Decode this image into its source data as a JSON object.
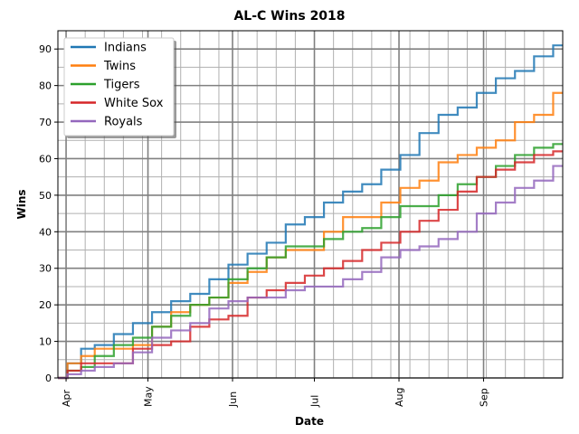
{
  "chart_data": {
    "type": "line",
    "title": "AL-C Wins 2018",
    "xlabel": "Date",
    "ylabel": "Wins",
    "x_unit": "days since Mar 29 2018",
    "xlim": [
      0,
      185
    ],
    "ylim": [
      0,
      95
    ],
    "yticks": [
      0,
      10,
      20,
      30,
      40,
      50,
      60,
      70,
      80,
      90
    ],
    "xticks": [
      {
        "label": "Apr",
        "day": 3
      },
      {
        "label": "May",
        "day": 33
      },
      {
        "label": "Jun",
        "day": 64
      },
      {
        "label": "Jul",
        "day": 94
      },
      {
        "label": "Aug",
        "day": 125
      },
      {
        "label": "Sep",
        "day": 156
      }
    ],
    "grid": true,
    "legend_position": "top-left",
    "x": [
      0,
      7,
      10,
      17,
      24,
      31,
      38,
      45,
      52,
      59,
      66,
      73,
      80,
      87,
      94,
      101,
      108,
      115,
      122,
      129,
      136,
      143,
      150,
      157,
      164,
      171,
      178,
      185
    ],
    "series": [
      {
        "name": "Indians",
        "color": "#1f77b4",
        "values": [
          0,
          4,
          8,
          9,
          12,
          15,
          18,
          21,
          23,
          27,
          31,
          34,
          37,
          42,
          44,
          48,
          51,
          53,
          57,
          61,
          67,
          72,
          74,
          78,
          82,
          84,
          88,
          91
        ]
      },
      {
        "name": "Twins",
        "color": "#ff7f0e",
        "values": [
          0,
          4,
          6,
          8,
          8,
          9,
          14,
          18,
          20,
          22,
          26,
          29,
          33,
          35,
          35,
          40,
          44,
          44,
          48,
          52,
          54,
          59,
          61,
          63,
          65,
          70,
          72,
          78
        ]
      },
      {
        "name": "Tigers",
        "color": "#2ca02c",
        "values": [
          0,
          2,
          3,
          6,
          9,
          11,
          14,
          17,
          20,
          22,
          27,
          30,
          33,
          36,
          36,
          38,
          40,
          41,
          44,
          47,
          47,
          50,
          53,
          55,
          58,
          61,
          63,
          64
        ]
      },
      {
        "name": "White Sox",
        "color": "#d62728",
        "values": [
          0,
          2,
          4,
          4,
          4,
          8,
          9,
          10,
          14,
          16,
          17,
          22,
          24,
          26,
          28,
          30,
          32,
          35,
          37,
          40,
          43,
          46,
          51,
          55,
          57,
          59,
          61,
          62
        ]
      },
      {
        "name": "Royals",
        "color": "#9467bd",
        "values": [
          0,
          1,
          2,
          3,
          4,
          7,
          11,
          13,
          15,
          19,
          21,
          22,
          22,
          24,
          25,
          25,
          27,
          29,
          33,
          35,
          36,
          38,
          40,
          45,
          48,
          52,
          54,
          58
        ]
      }
    ]
  }
}
